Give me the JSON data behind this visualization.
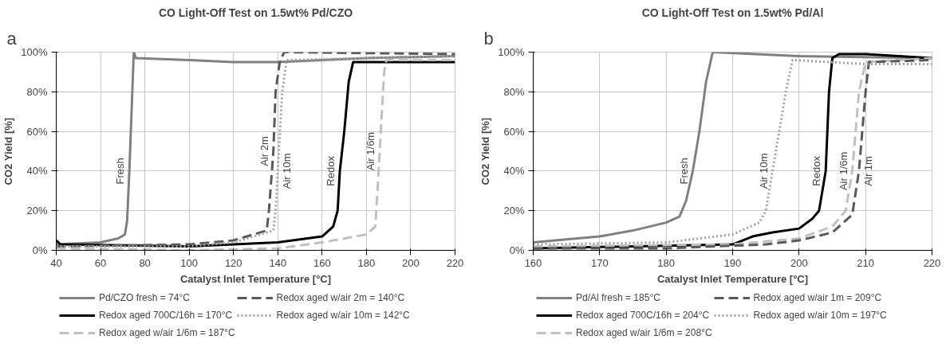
{
  "chart_data": [
    {
      "type": "line",
      "title": "CO Light-Off Test on 1.5wt% Pd/CZO",
      "xlabel": "Catalyst Inlet Temperature [°C]",
      "ylabel": "CO2 Yield [%]",
      "xlim": [
        40,
        220
      ],
      "xticks": [
        40,
        60,
        80,
        100,
        120,
        140,
        160,
        180,
        200,
        220
      ],
      "ylim": [
        0,
        100
      ],
      "yticks": [
        {
          "value": 0,
          "label": "0%"
        },
        {
          "value": 20,
          "label": "20%"
        },
        {
          "value": 40,
          "label": "40%"
        },
        {
          "value": 60,
          "label": "60%"
        },
        {
          "value": 80,
          "label": "80%"
        },
        {
          "value": 100,
          "label": "100%"
        }
      ],
      "grid": true,
      "legend": "bottom",
      "annotations": [
        "a",
        {
          "text": "Fresh",
          "x": 73,
          "y": 40
        },
        {
          "text": "Air 2m",
          "x": 138,
          "y": 50
        },
        {
          "text": "Air 10m",
          "x": 140,
          "y": 40
        },
        {
          "text": "Redox",
          "x": 168,
          "y": 40
        },
        {
          "text": "Air 1/6m",
          "x": 186,
          "y": 50
        }
      ],
      "series": [
        {
          "name": "Pd/CZO fresh = 74°C",
          "color": "#808080",
          "line_style": "solid",
          "x": [
            40,
            60,
            68,
            71,
            72,
            73,
            74,
            75,
            76,
            100,
            120,
            140,
            160,
            180,
            220
          ],
          "values": [
            3,
            4,
            6,
            8,
            15,
            40,
            70,
            100,
            97,
            96,
            95,
            95,
            96,
            97,
            98
          ]
        },
        {
          "name": "Redox aged 700C/16h = 170°C",
          "color": "#000000",
          "line_style": "solid",
          "x": [
            40,
            42,
            100,
            140,
            160,
            165,
            167,
            168,
            170,
            172,
            174,
            200,
            220
          ],
          "values": [
            5,
            3,
            2,
            4,
            7,
            12,
            20,
            40,
            60,
            85,
            95,
            95,
            95
          ]
        },
        {
          "name": "Redox aged w/air 1/6m = 187°C",
          "color": "#c0c0c0",
          "line_style": "dashed",
          "x": [
            40,
            100,
            140,
            160,
            180,
            184,
            185,
            186,
            187,
            188,
            189,
            220
          ],
          "values": [
            1,
            0,
            1,
            4,
            8,
            12,
            30,
            50,
            70,
            90,
            96,
            96
          ]
        },
        {
          "name": "Redox aged w/air 2m = 140°C",
          "color": "#595959",
          "line_style": "dashed",
          "x": [
            40,
            100,
            120,
            135,
            136,
            138,
            139,
            141,
            143,
            220
          ],
          "values": [
            2,
            3,
            5,
            10,
            20,
            50,
            80,
            96,
            100,
            99
          ]
        },
        {
          "name": "Redox aged w/air 10m = 142°C",
          "color": "#a0a0a0",
          "line_style": "dotted",
          "x": [
            40,
            100,
            120,
            138,
            139,
            140,
            141,
            142,
            144,
            220
          ],
          "values": [
            2,
            2,
            4,
            10,
            20,
            40,
            60,
            80,
            96,
            98
          ]
        }
      ]
    },
    {
      "type": "line",
      "title": "CO Light-Off Test on 1.5wt% Pd/Al",
      "xlabel": "Catalyst Inlet Temperature [°C]",
      "ylabel": "CO2 Yield [%]",
      "xlim": [
        160,
        220
      ],
      "xticks": [
        160,
        170,
        180,
        190,
        200,
        210,
        220
      ],
      "ylim": [
        0,
        100
      ],
      "yticks": [
        {
          "value": 0,
          "label": "0%"
        },
        {
          "value": 20,
          "label": "20%"
        },
        {
          "value": 40,
          "label": "40%"
        },
        {
          "value": 60,
          "label": "60%"
        },
        {
          "value": 80,
          "label": "80%"
        },
        {
          "value": 100,
          "label": "100%"
        }
      ],
      "grid": true,
      "legend": "bottom",
      "annotations": [
        "b",
        {
          "text": "Fresh",
          "x": 184,
          "y": 40
        },
        {
          "text": "Air 10m",
          "x": 196,
          "y": 40
        },
        {
          "text": "Redox",
          "x": 204,
          "y": 40
        },
        {
          "text": "Air 1/6m",
          "x": 208,
          "y": 40
        },
        {
          "text": "Air 1m",
          "x": 209,
          "y": 40
        }
      ],
      "series": [
        {
          "name": "Pd/Al fresh = 185°C",
          "color": "#808080",
          "line_style": "solid",
          "x": [
            160,
            170,
            175,
            180,
            182,
            183,
            184,
            185,
            186,
            187,
            200,
            220
          ],
          "values": [
            4,
            7,
            10,
            14,
            17,
            25,
            40,
            60,
            85,
            100,
            98,
            97
          ]
        },
        {
          "name": "Redox aged 700C/16h = 204°C",
          "color": "#000000",
          "line_style": "solid",
          "x": [
            160,
            190,
            193,
            196,
            200,
            202,
            203,
            204,
            204.5,
            205,
            206,
            210,
            220
          ],
          "values": [
            1,
            3,
            7,
            9,
            11,
            16,
            20,
            40,
            80,
            97,
            99,
            99,
            97
          ]
        },
        {
          "name": "Redox aged w/air 1/6m = 208°C",
          "color": "#c0c0c0",
          "line_style": "dashed",
          "x": [
            160,
            190,
            200,
            205,
            207,
            208,
            208.5,
            209,
            210,
            220
          ],
          "values": [
            2,
            3,
            6,
            12,
            20,
            40,
            60,
            80,
            95,
            97
          ]
        },
        {
          "name": "Redox aged w/air 1m = 209°C",
          "color": "#595959",
          "line_style": "dashed",
          "x": [
            160,
            180,
            195,
            200,
            205,
            208,
            209,
            210,
            210.5,
            220
          ],
          "values": [
            1,
            1,
            3,
            5,
            9,
            18,
            40,
            80,
            95,
            96
          ]
        },
        {
          "name": "Redox aged w/air 10m = 197°C",
          "color": "#a0a0a0",
          "line_style": "dotted",
          "x": [
            160,
            180,
            190,
            194,
            195,
            196,
            197,
            198,
            199,
            210,
            220
          ],
          "values": [
            3,
            4,
            8,
            14,
            20,
            40,
            60,
            80,
            96,
            94,
            94
          ]
        }
      ]
    }
  ]
}
